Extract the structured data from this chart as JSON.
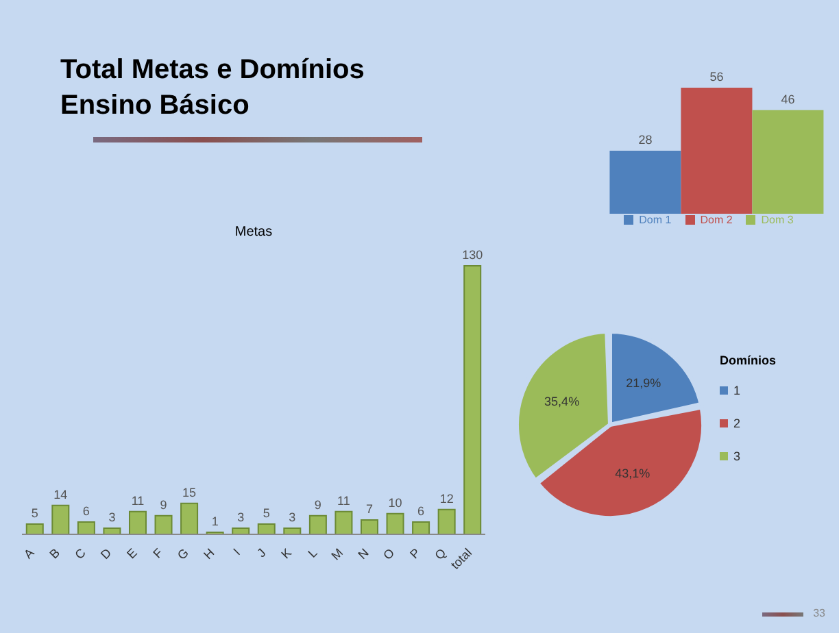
{
  "chart_data": [
    {
      "type": "bar",
      "categories": [
        null
      ],
      "series": [
        {
          "name": "Dom 1",
          "color": "#4f81bd",
          "values": [
            28
          ]
        },
        {
          "name": "Dom 2",
          "color": "#c0504d",
          "values": [
            56
          ]
        },
        {
          "name": "Dom 3",
          "color": "#9bbb59",
          "values": [
            46
          ]
        }
      ],
      "data_labels": true,
      "legend": "bottom"
    },
    {
      "type": "bar",
      "title": "Total Metas e Domínios\nEnsino Básico",
      "subtitle": "Metas",
      "categories": [
        "A",
        "B",
        "C",
        "D",
        "E",
        "F",
        "G",
        "H",
        "I",
        "J",
        "K",
        "L",
        "M",
        "N",
        "O",
        "P",
        "Q",
        "total"
      ],
      "values": [
        5,
        14,
        6,
        3,
        11,
        9,
        15,
        1,
        3,
        5,
        3,
        9,
        11,
        7,
        10,
        6,
        12,
        130
      ],
      "color": "#9bbb59",
      "data_labels": true
    },
    {
      "type": "pie",
      "legend_title": "Domínios",
      "categories": [
        "1",
        "2",
        "3"
      ],
      "values": [
        21.9,
        43.1,
        35.4
      ],
      "colors": [
        "#4f81bd",
        "#c0504d",
        "#9bbb59"
      ],
      "value_labels": [
        "21,9%",
        "43,1%",
        "35,4%"
      ],
      "legend": "right",
      "annotations": [
        "33"
      ]
    }
  ]
}
